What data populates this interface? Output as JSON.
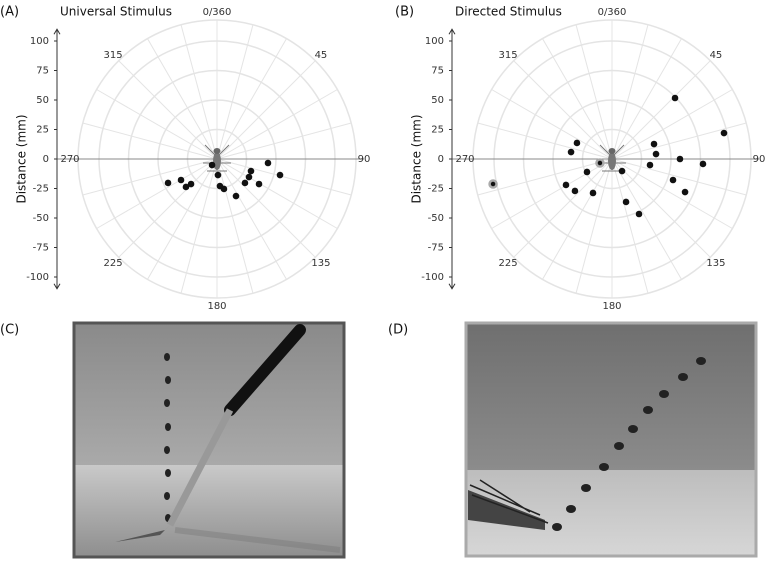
{
  "chart_data": [
    {
      "type": "polar-scatter",
      "panel": "(A)",
      "title": "Universal Stimulus",
      "ylabel": "Distance (mm)",
      "ylim": [
        -110,
        110
      ],
      "yticks": [
        -100,
        -75,
        -50,
        -25,
        0,
        25,
        50,
        75,
        100
      ],
      "angleticks": [
        {
          "value": 0,
          "label": "0/360"
        },
        45,
        90,
        135,
        180,
        225,
        270,
        315
      ],
      "spoke_step": 15,
      "color": "#111111",
      "x": [
        -41.5,
        -30.5,
        -26.3,
        -22,
        -4.2,
        0.8,
        2.5,
        5.9,
        16.1,
        23.7,
        27.1,
        28.8,
        35.6,
        43.2,
        53.4
      ],
      "values": [
        -20.3,
        -17.8,
        -23.7,
        -21.2,
        -5.1,
        -13.6,
        -22.9,
        -25.4,
        -31.4,
        -20.3,
        -15.3,
        -10.2,
        -21.2,
        -3.4,
        -13.6
      ],
      "ringed": [
        false,
        false,
        false,
        false,
        false,
        false,
        false,
        false,
        false,
        false,
        false,
        false,
        false,
        false,
        false
      ]
    },
    {
      "type": "polar-scatter",
      "panel": "(B)",
      "title": "Directed Stimulus",
      "ylabel": "Distance (mm)",
      "ylim": [
        -110,
        110
      ],
      "yticks": [
        -100,
        -75,
        -50,
        -25,
        0,
        25,
        50,
        75,
        100
      ],
      "angleticks": [
        {
          "value": 0,
          "label": "0/360"
        },
        45,
        90,
        135,
        180,
        225,
        270,
        315
      ],
      "spoke_step": 15,
      "color": "#111111",
      "x": [
        -100.8,
        -34.7,
        -29.7,
        -39,
        -31.4,
        -21.2,
        -16.1,
        -10.2,
        8.5,
        11.9,
        22.9,
        32.2,
        35.6,
        37.3,
        53.4,
        57.6,
        51.7,
        61.9,
        77.1,
        94.9
      ],
      "values": [
        -21.2,
        5.9,
        13.6,
        -22,
        -27.1,
        -11,
        -28.8,
        -3.4,
        -10.2,
        -36.4,
        -46.6,
        -5.1,
        12.7,
        4.2,
        51.7,
        0,
        -17.8,
        -28,
        -4.2,
        22
      ],
      "ringed": [
        true,
        false,
        false,
        false,
        false,
        false,
        false,
        true,
        false,
        false,
        false,
        false,
        false,
        false,
        false,
        false,
        false,
        false,
        false,
        false
      ]
    }
  ],
  "photos": [
    {
      "label": "(C)"
    },
    {
      "label": "(D)"
    }
  ]
}
